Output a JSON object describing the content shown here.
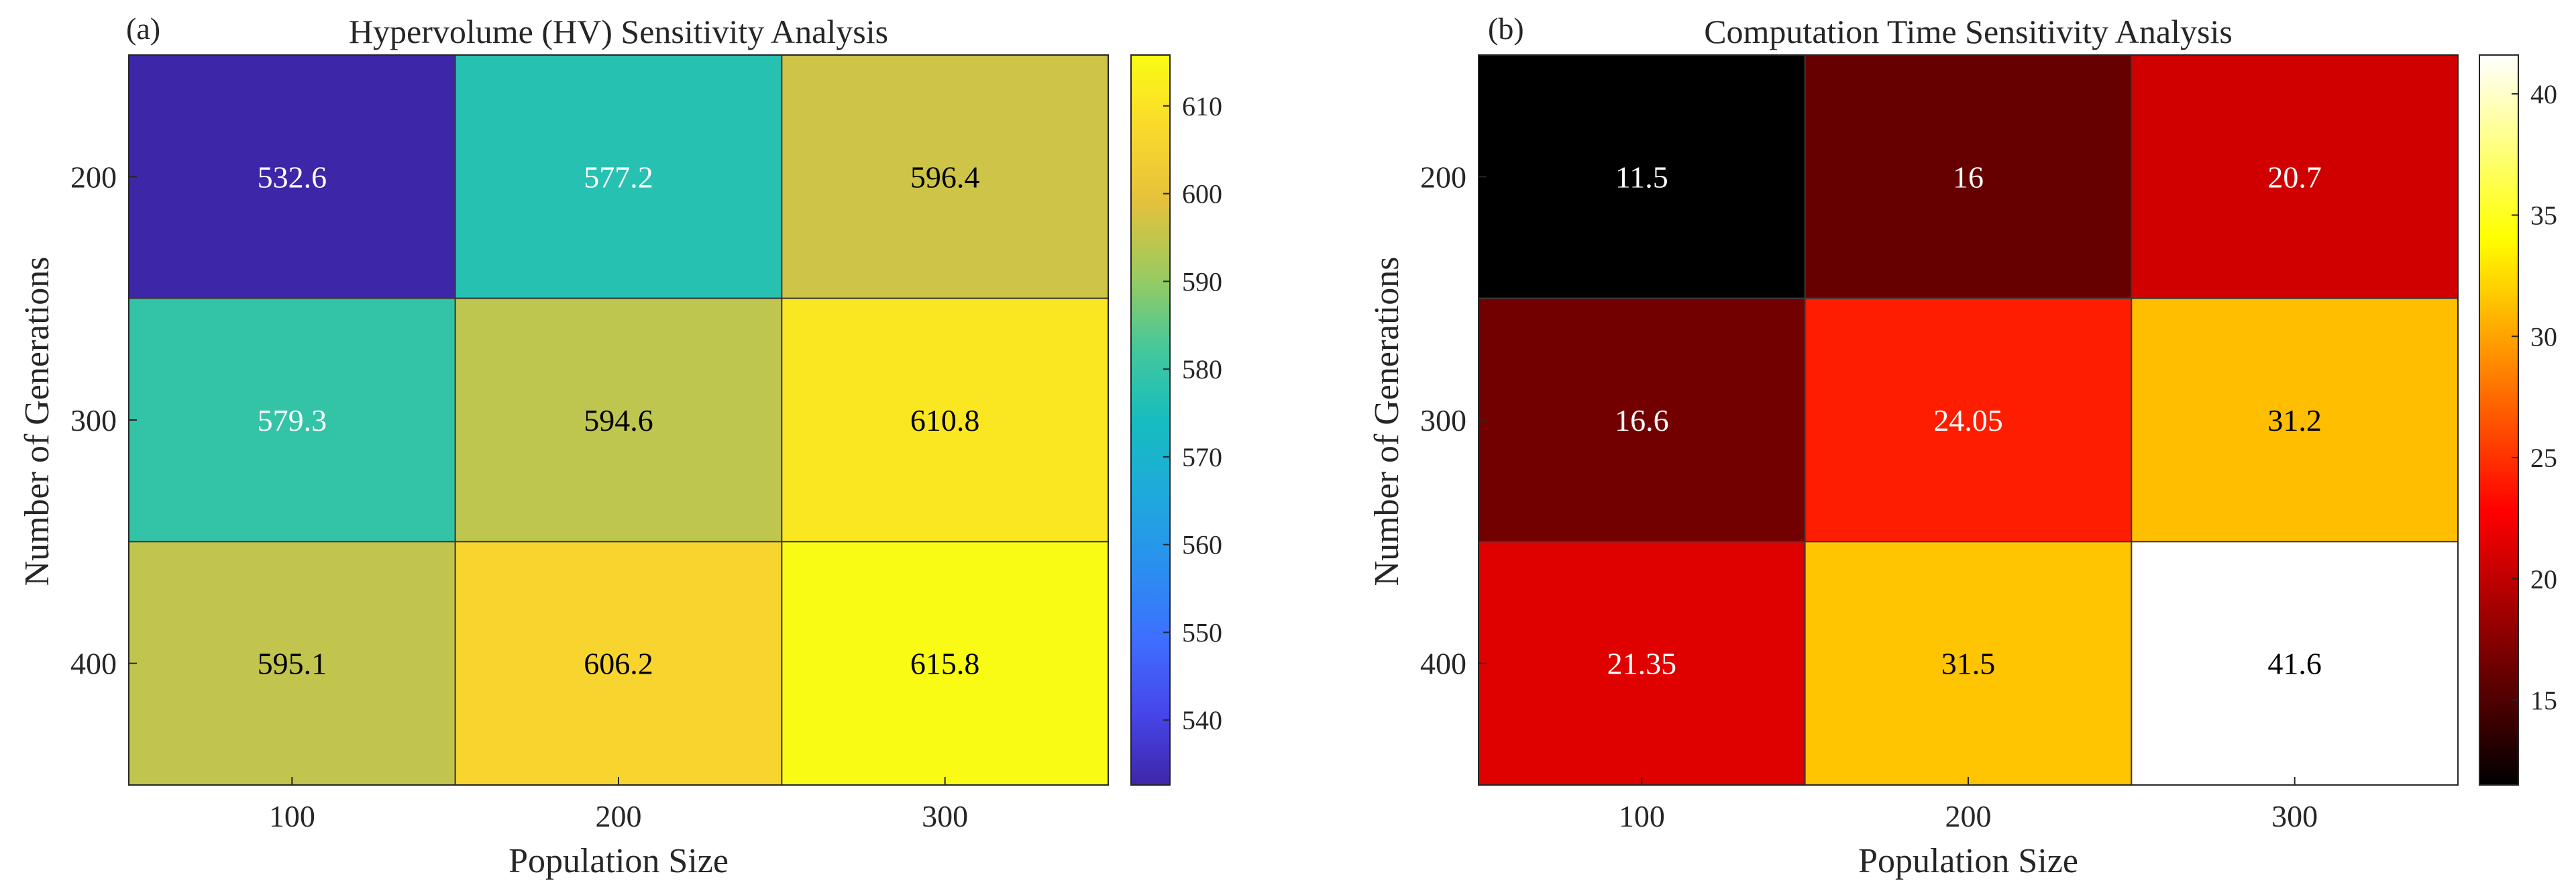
{
  "chart_data": [
    {
      "type": "heatmap",
      "panel_label": "(a)",
      "title": "Hypervolume (HV) Sensitivity Analysis",
      "xlabel": "Population Size",
      "ylabel": "Number of Generations",
      "x_categories": [
        "100",
        "200",
        "300"
      ],
      "y_categories": [
        "200",
        "300",
        "400"
      ],
      "values": [
        [
          532.6,
          577.2,
          596.4
        ],
        [
          579.3,
          594.6,
          610.8
        ],
        [
          595.1,
          606.2,
          615.8
        ]
      ],
      "cell_labels": [
        [
          "532.6",
          "577.2",
          "596.4"
        ],
        [
          "579.3",
          "594.6",
          "610.8"
        ],
        [
          "595.1",
          "606.2",
          "615.8"
        ]
      ],
      "colormap": "parula",
      "clim": [
        532.6,
        615.8
      ],
      "colorbar_ticks": [
        540,
        550,
        560,
        570,
        580,
        590,
        600,
        610
      ]
    },
    {
      "type": "heatmap",
      "panel_label": "(b)",
      "title": "Computation Time Sensitivity Analysis",
      "xlabel": "Population Size",
      "ylabel": "Number of Generations",
      "x_categories": [
        "100",
        "200",
        "300"
      ],
      "y_categories": [
        "200",
        "300",
        "400"
      ],
      "values": [
        [
          11.5,
          16,
          20.7
        ],
        [
          16.6,
          24.05,
          31.2
        ],
        [
          21.35,
          31.5,
          41.6
        ]
      ],
      "cell_labels": [
        [
          "11.5",
          "16",
          "20.7"
        ],
        [
          "16.6",
          "24.05",
          "31.2"
        ],
        [
          "21.35",
          "31.5",
          "41.6"
        ]
      ],
      "colormap": "hot",
      "clim": [
        11.5,
        41.6
      ],
      "colorbar_ticks": [
        15,
        20,
        25,
        30,
        35,
        40
      ]
    }
  ]
}
